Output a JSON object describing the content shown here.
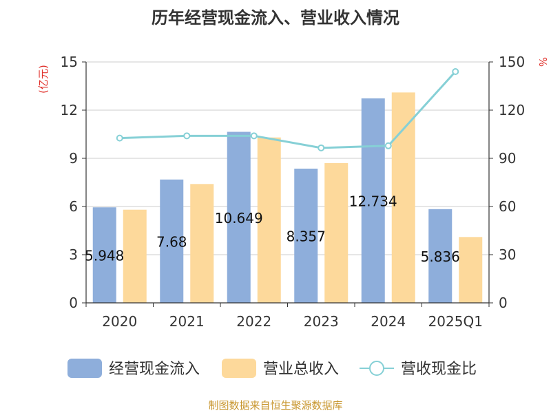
{
  "footer": "制图数据来自恒生聚源数据库",
  "chart_data": {
    "type": "bar",
    "title": "历年经营现金流入、营业收入情况",
    "categories": [
      "2020",
      "2021",
      "2022",
      "2023",
      "2024",
      "2025Q1"
    ],
    "y_left": {
      "label": "(亿元)",
      "range": [
        0,
        15
      ],
      "ticks": [
        0,
        3,
        6,
        9,
        12,
        15
      ]
    },
    "y_right": {
      "label": "%",
      "range": [
        0,
        150
      ],
      "ticks": [
        0,
        30,
        60,
        90,
        120,
        150
      ]
    },
    "grid": true,
    "legend_position": "bottom",
    "series": [
      {
        "name": "经营现金流入",
        "type": "bar",
        "axis": "left",
        "color": "#8eaedb",
        "values": [
          5.948,
          7.68,
          10.649,
          8.357,
          12.734,
          5.836
        ],
        "data_labels": [
          "5.948",
          "7.68",
          "10.649",
          "8.357",
          "12.734",
          "5.836"
        ]
      },
      {
        "name": "营业总收入",
        "type": "bar",
        "axis": "left",
        "color": "#fdd99b",
        "values": [
          5.8,
          7.4,
          10.3,
          8.7,
          13.1,
          4.1
        ]
      },
      {
        "name": "营收现金比",
        "type": "line",
        "axis": "right",
        "color": "#86d0d6",
        "values": [
          102.6,
          104.0,
          104.0,
          96.5,
          97.8,
          144.0
        ]
      }
    ]
  }
}
